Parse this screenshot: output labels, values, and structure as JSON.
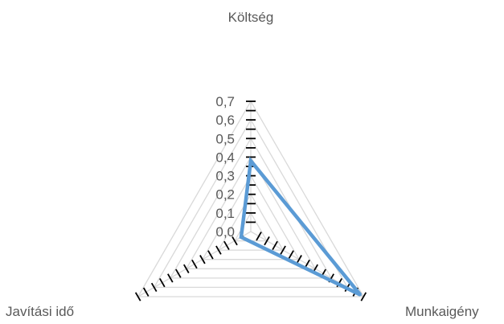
{
  "chart_data": {
    "type": "radar",
    "categories": [
      "Költség",
      "Munkaigény",
      "Javítási idő"
    ],
    "series": [
      {
        "values": [
          0.38,
          0.68,
          0.06
        ]
      }
    ],
    "rlim": [
      0,
      0.7
    ],
    "ticks": [
      "0,0",
      "0,1",
      "0,2",
      "0,3",
      "0,4",
      "0,5",
      "0,6",
      "0,7"
    ],
    "legend": "none",
    "grid": true,
    "colors": {
      "series": "#5b9bd5",
      "grid": "#d9d9d9",
      "axis": "#000000",
      "text": "#595959"
    }
  }
}
